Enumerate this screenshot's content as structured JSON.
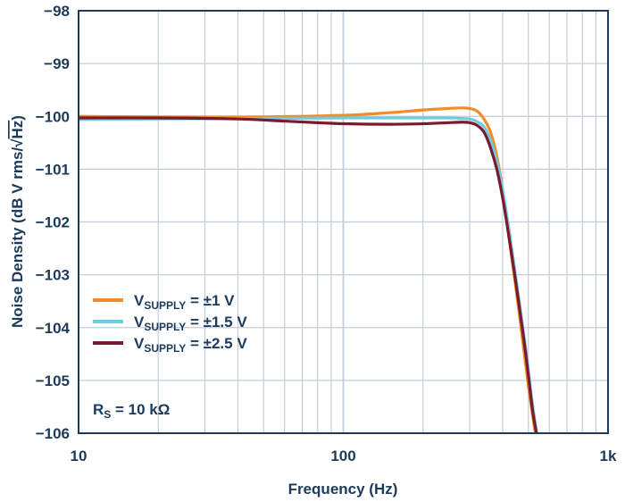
{
  "chart_data": {
    "type": "line",
    "xscale": "log",
    "xlim": [
      10,
      1000
    ],
    "ylim": [
      -106,
      -98
    ],
    "xlabel": "Frequency (Hz)",
    "ylabel": {
      "prefix": "Noise Density (dB V rms/",
      "radicand": "Hz",
      "suffix": ")"
    },
    "xticks": [
      {
        "value": 10,
        "label": "10"
      },
      {
        "value": 100,
        "label": "100"
      },
      {
        "value": 1000,
        "label": "1k"
      }
    ],
    "yticks": [
      {
        "value": -98,
        "label": "−98"
      },
      {
        "value": -99,
        "label": "−99"
      },
      {
        "value": -100,
        "label": "−100"
      },
      {
        "value": -101,
        "label": "−101"
      },
      {
        "value": -102,
        "label": "−102"
      },
      {
        "value": -103,
        "label": "−103"
      },
      {
        "value": -104,
        "label": "−104"
      },
      {
        "value": -105,
        "label": "−105"
      },
      {
        "value": -106,
        "label": "−106"
      }
    ],
    "grid": true,
    "annotation": {
      "main": "R",
      "sub": "S",
      "rest": " = 10 kΩ"
    },
    "legend_position": "lower-left",
    "series": [
      {
        "name": "V_SUPPLY = ±1 V",
        "label_main": "V",
        "label_sub": "SUPPLY",
        "label_rest": " = ±1 V",
        "color": "#f28c28",
        "x": [
          10,
          20,
          50,
          100,
          150,
          200,
          250,
          280,
          300,
          320,
          340,
          360,
          380,
          400,
          420,
          450,
          480,
          500,
          520,
          540
        ],
        "y": [
          -100.0,
          -100.01,
          -100.01,
          -99.98,
          -99.93,
          -99.88,
          -99.85,
          -99.84,
          -99.85,
          -99.9,
          -100.05,
          -100.3,
          -100.75,
          -101.4,
          -102.2,
          -103.3,
          -104.4,
          -105.1,
          -105.7,
          -106.2
        ]
      },
      {
        "name": "V_SUPPLY = ±1.5 V",
        "label_main": "V",
        "label_sub": "SUPPLY",
        "label_rest": " = ±1.5 V",
        "color": "#6fcbe0",
        "x": [
          10,
          20,
          50,
          100,
          150,
          200,
          250,
          280,
          300,
          320,
          340,
          360,
          380,
          400,
          420,
          450,
          480,
          500,
          520,
          550
        ],
        "y": [
          -100.06,
          -100.05,
          -100.04,
          -100.03,
          -100.03,
          -100.03,
          -100.03,
          -100.04,
          -100.05,
          -100.1,
          -100.2,
          -100.45,
          -100.85,
          -101.4,
          -102.05,
          -103.1,
          -104.1,
          -104.8,
          -105.5,
          -106.3
        ]
      },
      {
        "name": "V_SUPPLY = ±2.5 V",
        "label_main": "V",
        "label_sub": "SUPPLY",
        "label_rest": " = ±2.5 V",
        "color": "#7a1a2e",
        "x": [
          10,
          20,
          40,
          60,
          80,
          100,
          150,
          200,
          250,
          280,
          300,
          320,
          340,
          360,
          380,
          400,
          420,
          450,
          480,
          500,
          520,
          550
        ],
        "y": [
          -100.03,
          -100.03,
          -100.05,
          -100.09,
          -100.12,
          -100.14,
          -100.15,
          -100.14,
          -100.12,
          -100.11,
          -100.12,
          -100.17,
          -100.3,
          -100.6,
          -101.0,
          -101.55,
          -102.2,
          -103.2,
          -104.2,
          -104.9,
          -105.6,
          -106.3
        ]
      }
    ]
  }
}
